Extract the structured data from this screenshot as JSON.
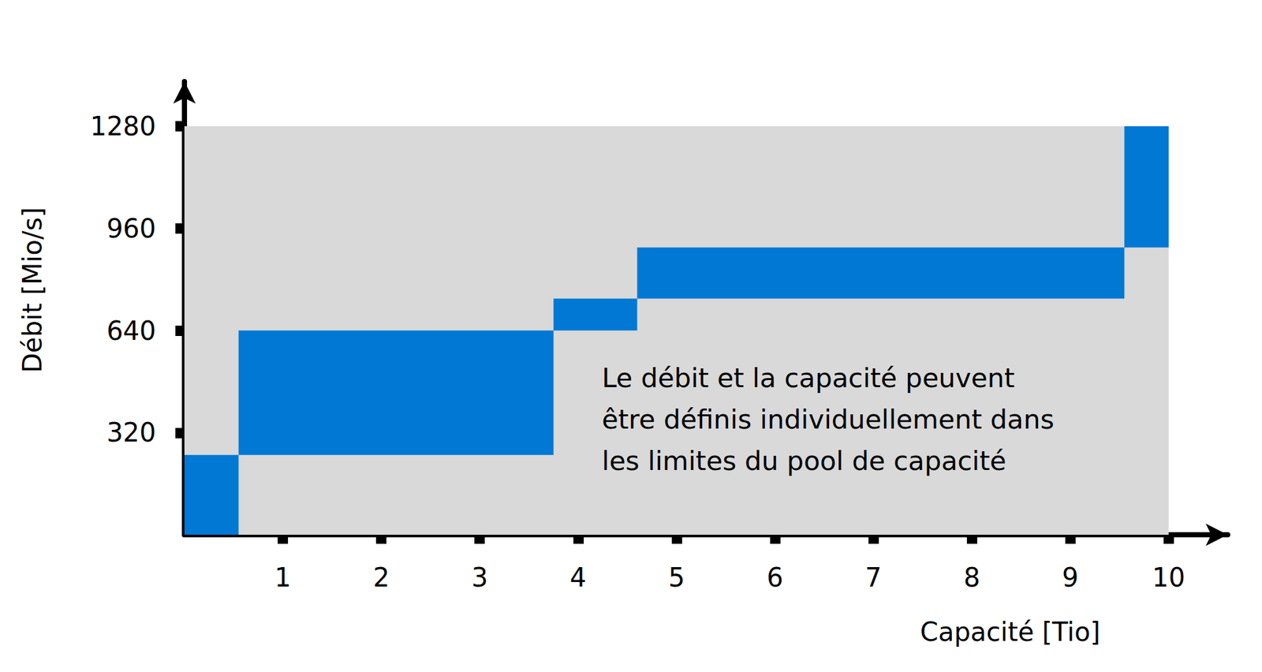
{
  "chart_data": {
    "type": "rect",
    "x_label": "Capacité [Tio]",
    "y_label": "Débit [Mio/s]",
    "annotation": [
      "Le débit et la capacité peuvent",
      "être définis individuellement dans",
      "les limites du pool de capacité"
    ],
    "pool": {
      "capacity": 10,
      "throughput": 1280,
      "color": "#d9d9d9"
    },
    "volumes": {
      "capacity": [
        0.55,
        3.2,
        0.85,
        4.95,
        0.45
      ],
      "throughput": [
        250,
        390,
        100,
        160,
        380
      ]
    },
    "color": "#0078d4",
    "stacked": true,
    "xlim": [
      0,
      10.6
    ],
    "ylim": [
      0,
      1420
    ],
    "xticks": [
      1,
      2,
      3,
      4,
      5,
      6,
      7,
      8,
      9,
      10
    ],
    "yticks": [
      320,
      640,
      960,
      1280
    ],
    "grid": false
  }
}
